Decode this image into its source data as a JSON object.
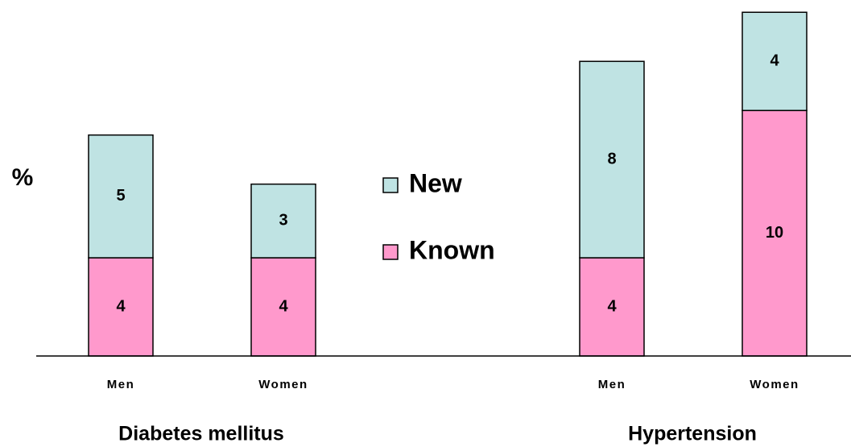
{
  "chart_data": {
    "type": "stacked-bar",
    "ylabel": "%",
    "categories": [
      "Men",
      "Women",
      "Men",
      "Women"
    ],
    "groups": [
      "Diabetes mellitus",
      "Hypertension"
    ],
    "series": [
      {
        "name": "Known",
        "color": "#ff99cc",
        "values": [
          4,
          4,
          4,
          10
        ]
      },
      {
        "name": "New",
        "color": "#bfe3e3",
        "values": [
          5,
          3,
          8,
          4
        ]
      }
    ],
    "ylim": [
      0,
      14.5
    ],
    "legend": "center"
  }
}
